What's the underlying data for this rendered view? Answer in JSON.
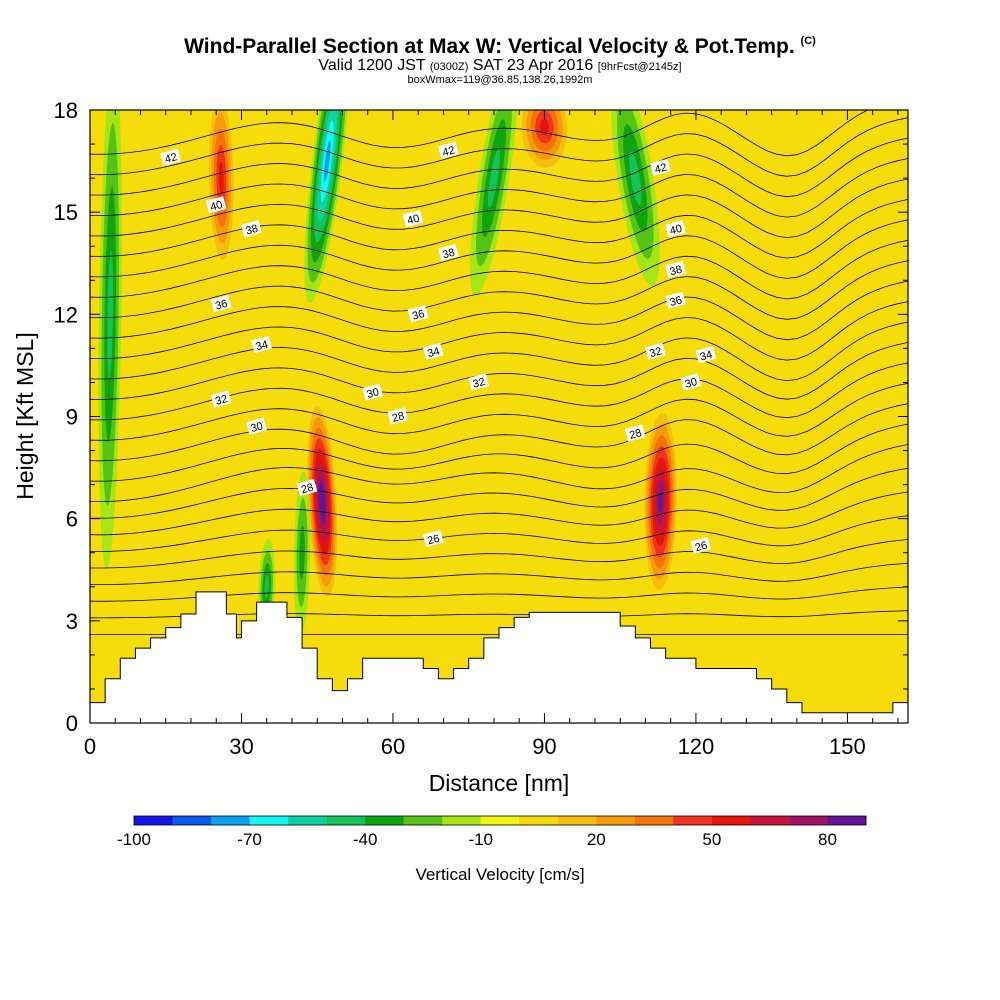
{
  "header": {
    "title_main": "Wind-Parallel Section at Max W: Vertical Velocity & Pot.Temp.",
    "title_mark": "(C)",
    "valid_prefix": "Valid 1200 JST",
    "valid_utc": "(0300Z)",
    "valid_date": "SAT 23 Apr 2016",
    "forecast_info": "[9hrFcst@2145z]",
    "box_info": "boxWmax=119@36.85,138.26,1992m"
  },
  "chart_data": {
    "type": "heatmap",
    "xlabel": "Distance [nm]",
    "ylabel": "Height [Kft MSL]",
    "xlim": [
      0,
      162
    ],
    "ylim": [
      0,
      18
    ],
    "x_ticks": [
      0,
      30,
      60,
      90,
      120,
      150
    ],
    "y_ticks": [
      0,
      3,
      6,
      9,
      12,
      15,
      18
    ],
    "colorbar": {
      "title": "Vertical Velocity [cm/s]",
      "levels": [
        -100,
        -90,
        -80,
        -70,
        -60,
        -50,
        -40,
        -30,
        -20,
        -10,
        0,
        10,
        20,
        30,
        40,
        50,
        60,
        70,
        80,
        90
      ],
      "tick_labels": [
        -100,
        -70,
        -40,
        -10,
        20,
        50,
        80
      ],
      "colors": [
        "#1414e6",
        "#0a5aeb",
        "#0aa0f0",
        "#14f5f5",
        "#10d2a0",
        "#14c35a",
        "#0fa50f",
        "#55c314",
        "#a5e614",
        "#f0f514",
        "#f5dc0a",
        "#f5be0a",
        "#f59b0a",
        "#f5730a",
        "#f0321e",
        "#e6140a",
        "#c8143c",
        "#a01464",
        "#641496"
      ]
    },
    "background_value_cm_s": 0,
    "vertical_velocity_features": [
      {
        "name": "updraft",
        "x": 113,
        "y": 6.5,
        "peak": 88
      },
      {
        "name": "updraft",
        "x": 46,
        "y": 6.5,
        "peak": 90
      },
      {
        "name": "updraft",
        "x": 26,
        "y": 16,
        "peak": 55
      },
      {
        "name": "updraft",
        "x": 90,
        "y": 17.5,
        "peak": 50
      },
      {
        "name": "downdraft",
        "x": 47,
        "y": 16.5,
        "peak": -75
      },
      {
        "name": "downdraft",
        "x": 4,
        "y": 12,
        "peak": -40
      },
      {
        "name": "downdraft",
        "x": 80,
        "y": 16,
        "peak": -40
      },
      {
        "name": "downdraft",
        "x": 108,
        "y": 16,
        "peak": -40
      },
      {
        "name": "downdraft",
        "x": 35,
        "y": 4,
        "peak": -40
      },
      {
        "name": "downdraft",
        "x": 42,
        "y": 5,
        "peak": -30
      }
    ],
    "terrain": {
      "x": [
        0,
        3,
        3,
        6,
        6,
        9,
        9,
        12,
        12,
        15,
        15,
        18,
        18,
        21,
        21,
        27,
        27,
        29,
        29,
        30,
        30,
        33,
        33,
        39,
        39,
        42,
        42,
        45,
        45,
        48,
        48,
        51,
        51,
        54,
        54,
        57,
        57,
        66,
        66,
        69,
        69,
        72,
        72,
        75,
        75,
        78,
        78,
        81,
        81,
        84,
        84,
        87,
        87,
        90,
        90,
        105,
        105,
        108,
        108,
        111,
        111,
        114,
        114,
        117,
        117,
        120,
        120,
        132,
        132,
        135,
        135,
        138,
        138,
        141,
        141,
        144,
        144,
        159,
        159,
        162
      ],
      "y": [
        0.6,
        0.6,
        1.3,
        1.3,
        1.9,
        1.9,
        2.2,
        2.2,
        2.5,
        2.5,
        2.8,
        2.8,
        3.2,
        3.2,
        3.85,
        3.85,
        3.2,
        3.2,
        2.5,
        2.5,
        3.0,
        3.0,
        3.55,
        3.55,
        3.1,
        3.1,
        2.2,
        2.2,
        1.3,
        1.3,
        0.95,
        0.95,
        1.3,
        1.3,
        1.9,
        1.9,
        1.9,
        1.9,
        1.6,
        1.6,
        1.3,
        1.3,
        1.6,
        1.6,
        1.9,
        1.9,
        2.5,
        2.5,
        2.8,
        2.8,
        3.1,
        3.1,
        3.25,
        3.25,
        3.25,
        3.25,
        2.85,
        2.85,
        2.5,
        2.5,
        2.2,
        2.2,
        1.9,
        1.9,
        1.9,
        1.9,
        1.6,
        1.6,
        1.3,
        1.3,
        1.0,
        1.0,
        0.6,
        0.6,
        0.3,
        0.3,
        0.3,
        0.3,
        0.6,
        0.6
      ]
    },
    "isentrope_labels": [
      {
        "label": "42",
        "x": 16,
        "y": 16.6
      },
      {
        "label": "40",
        "x": 25,
        "y": 15.2
      },
      {
        "label": "38",
        "x": 32,
        "y": 14.5
      },
      {
        "label": "36",
        "x": 26,
        "y": 12.3
      },
      {
        "label": "34",
        "x": 34,
        "y": 11.1
      },
      {
        "label": "32",
        "x": 26,
        "y": 9.5
      },
      {
        "label": "30",
        "x": 33,
        "y": 8.7
      },
      {
        "label": "28",
        "x": 43,
        "y": 6.9
      },
      {
        "label": "30",
        "x": 56,
        "y": 9.7
      },
      {
        "label": "28",
        "x": 61,
        "y": 9.0
      },
      {
        "label": "26",
        "x": 68,
        "y": 5.4
      },
      {
        "label": "34",
        "x": 68,
        "y": 10.9
      },
      {
        "label": "36",
        "x": 65,
        "y": 12.0
      },
      {
        "label": "38",
        "x": 71,
        "y": 13.8
      },
      {
        "label": "40",
        "x": 64,
        "y": 14.8
      },
      {
        "label": "42",
        "x": 71,
        "y": 16.8
      },
      {
        "label": "32",
        "x": 77,
        "y": 10.0
      },
      {
        "label": "42",
        "x": 113,
        "y": 16.3
      },
      {
        "label": "40",
        "x": 116,
        "y": 14.5
      },
      {
        "label": "38",
        "x": 116,
        "y": 13.3
      },
      {
        "label": "36",
        "x": 116,
        "y": 12.4
      },
      {
        "label": "32",
        "x": 112,
        "y": 10.9
      },
      {
        "label": "34",
        "x": 122,
        "y": 10.8
      },
      {
        "label": "30",
        "x": 119,
        "y": 10.0
      },
      {
        "label": "28",
        "x": 108,
        "y": 8.5
      },
      {
        "label": "26",
        "x": 121,
        "y": 5.2
      }
    ]
  }
}
